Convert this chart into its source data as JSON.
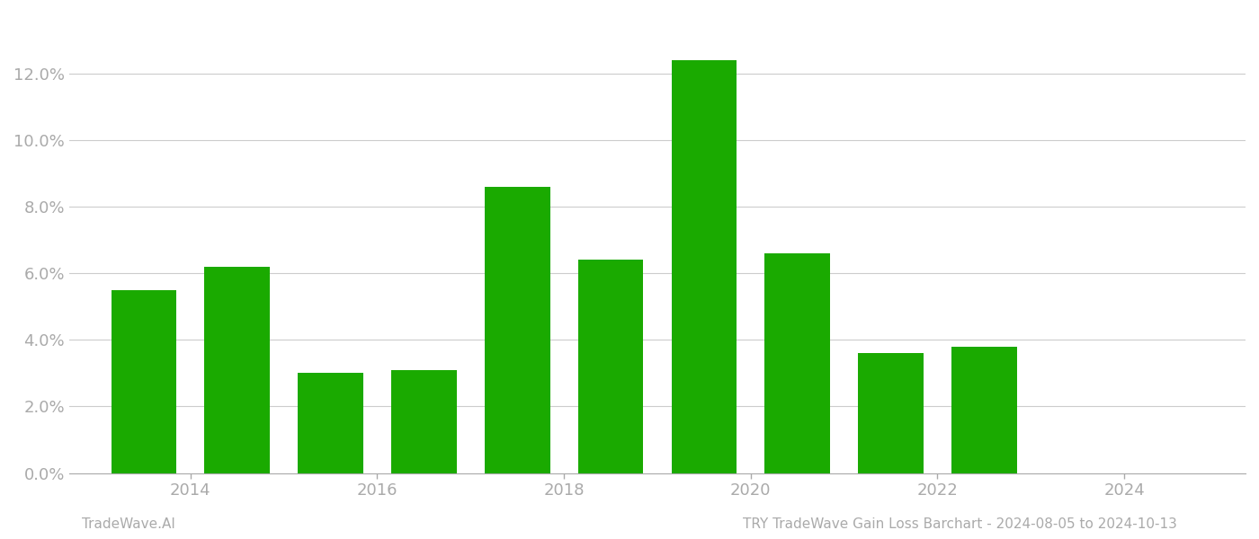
{
  "years": [
    2013,
    2014,
    2015,
    2016,
    2017,
    2018,
    2019,
    2020,
    2021,
    2022,
    2023
  ],
  "values": [
    0.055,
    0.062,
    0.03,
    0.031,
    0.086,
    0.064,
    0.124,
    0.066,
    0.036,
    0.038,
    0.0
  ],
  "bar_color": "#1aaa00",
  "background_color": "#ffffff",
  "yticks": [
    0.0,
    0.02,
    0.04,
    0.06,
    0.08,
    0.1,
    0.12
  ],
  "xtick_labels": [
    "2014",
    "2016",
    "2018",
    "2020",
    "2022",
    "2024"
  ],
  "xtick_positions": [
    2013.5,
    2015.5,
    2017.5,
    2019.5,
    2021.5,
    2023.5
  ],
  "footer_left": "TradeWave.AI",
  "footer_right": "TRY TradeWave Gain Loss Barchart - 2024-08-05 to 2024-10-13",
  "grid_color": "#cccccc",
  "axis_color": "#aaaaaa",
  "text_color": "#aaaaaa",
  "xlim": [
    2012.2,
    2024.8
  ],
  "ylim": [
    0,
    0.138
  ],
  "bar_width": 0.7
}
